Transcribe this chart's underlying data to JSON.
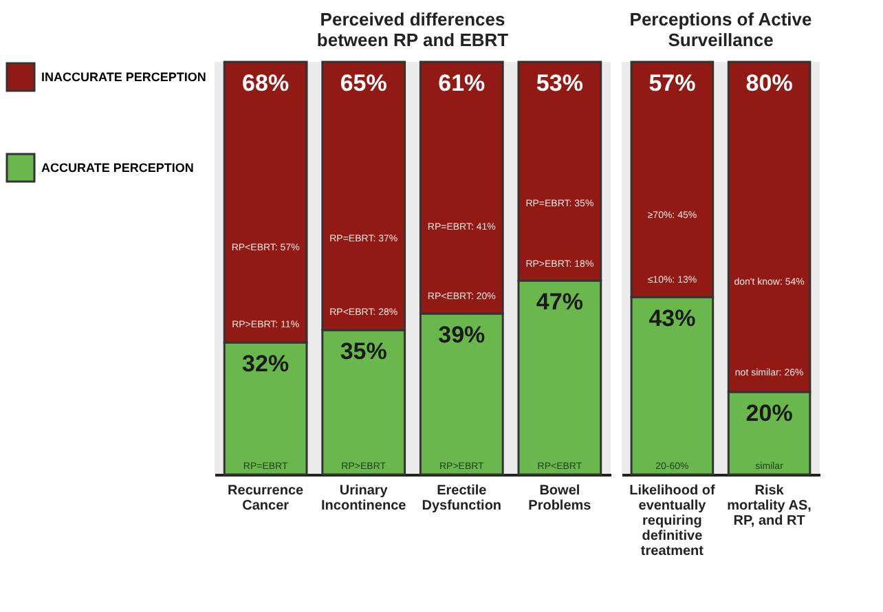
{
  "chart_data": [
    {
      "type": "bar",
      "stacked": true,
      "title": "Perceived differences between RP and EBRT",
      "categories": [
        "Recurrence Cancer",
        "Urinary Incontinence",
        "Erectile Dysfunction",
        "Bowel Problems"
      ],
      "series": [
        {
          "name": "ACCURATE PERCEPTION",
          "color": "#6ab74e",
          "values": [
            32,
            35,
            39,
            47
          ],
          "value_labels": [
            "32%",
            "35%",
            "39%",
            "47%"
          ]
        },
        {
          "name": "INACCURATE PERCEPTION",
          "color": "#921a15",
          "values": [
            68,
            65,
            61,
            53
          ],
          "value_labels": [
            "68%",
            "65%",
            "61%",
            "53%"
          ]
        }
      ],
      "legend": "left",
      "annotations": [
        "RP<EBRT: 57%",
        "RP>EBRT: 11%",
        "RP=EBRT",
        "RP=EBRT: 37%",
        "RP<EBRT: 28%",
        "RP>EBRT",
        "RP=EBRT: 41%",
        "RP<EBRT: 20%",
        "RP>EBRT",
        "RP=EBRT: 35%",
        "RP>EBRT: 18%",
        "RP<EBRT"
      ]
    },
    {
      "type": "bar",
      "stacked": true,
      "title": "Perceptions of Active Surveillance",
      "categories": [
        "Likelihood of eventually requiring definitive treatment",
        "Risk mortality AS, RP, and RT"
      ],
      "series": [
        {
          "color": "#6ab74e",
          "values": [
            43,
            20
          ],
          "value_labels": [
            "43%",
            "20%"
          ]
        },
        {
          "color": "#921a15",
          "values": [
            57,
            80
          ],
          "value_labels": [
            "57%",
            "80%"
          ]
        }
      ],
      "annotations": [
        "≥70%: 45%",
        "≤10%: 13%",
        "20-60%",
        "don't know: 54%",
        "not similar: 26%",
        "similar"
      ]
    }
  ]
}
